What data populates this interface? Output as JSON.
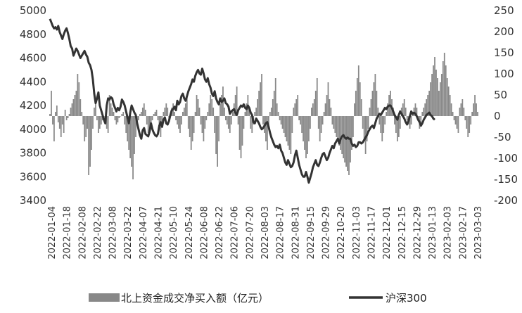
{
  "chart_data": {
    "type": "bar",
    "colors": {
      "bars": "#888888",
      "line": "#333333"
    },
    "left_axis": {
      "ticks": [
        3400,
        3600,
        3800,
        4000,
        4200,
        4400,
        4600,
        4800,
        5000
      ],
      "range": [
        3400,
        5000
      ]
    },
    "right_axis": {
      "ticks": [
        -200,
        -150,
        -100,
        -50,
        0,
        50,
        100,
        150,
        200,
        250
      ],
      "range": [
        -200,
        250
      ]
    },
    "x_ticks": [
      "2022-01-04",
      "2022-01-18",
      "2022-02-08",
      "2022-02-22",
      "2022-03-08",
      "2022-03-22",
      "2022-04-07",
      "2022-04-21",
      "2022-05-10",
      "2022-05-24",
      "2022-06-08",
      "2022-06-22",
      "2022-07-06",
      "2022-07-20",
      "2022-08-03",
      "2022-08-17",
      "2022-08-31",
      "2022-09-15",
      "2022-09-29",
      "2022-10-20",
      "2022-11-03",
      "2022-11-17",
      "2022-12-01",
      "2022-12-15",
      "2022-12-29",
      "2023-01-13",
      "2023-02-03",
      "2023-02-17",
      "2023-03-03"
    ],
    "series": [
      {
        "name": "北上资金成交净买入额（亿元）",
        "kind": "bar",
        "axis": "right",
        "values": [
          5,
          60,
          -20,
          -60,
          10,
          25,
          -15,
          -30,
          -50,
          -20,
          -40,
          15,
          -10,
          -5,
          5,
          20,
          30,
          40,
          50,
          60,
          100,
          80,
          40,
          10,
          -20,
          -60,
          -50,
          -30,
          -140,
          -120,
          -80,
          -30,
          20,
          40,
          -10,
          -40,
          -30,
          -20,
          -10,
          -5,
          -20,
          -30,
          -40,
          50,
          30,
          20,
          10,
          -10,
          -20,
          -15,
          -5,
          0,
          5,
          10,
          -20,
          -40,
          -60,
          -80,
          -100,
          -120,
          -150,
          -90,
          -50,
          -20,
          -10,
          5,
          10,
          20,
          30,
          15,
          -20,
          -40,
          -30,
          -20,
          -10,
          5,
          10,
          15,
          -10,
          -30,
          -50,
          -20,
          10,
          20,
          30,
          20,
          -10,
          5,
          20,
          30,
          10,
          -10,
          -20,
          -30,
          -40,
          -20,
          10,
          20,
          30,
          50,
          -30,
          -50,
          -80,
          -60,
          -40,
          10,
          50,
          40,
          20,
          -20,
          -40,
          -60,
          -30,
          -10,
          10,
          30,
          50,
          40,
          20,
          -40,
          -90,
          -120,
          -60,
          30,
          50,
          70,
          20,
          -10,
          -20,
          -30,
          -40,
          -20,
          10,
          30,
          50,
          70,
          -20,
          -80,
          -100,
          -70,
          -30,
          10,
          30,
          50,
          20,
          -30,
          -40,
          -20,
          10,
          20,
          40,
          60,
          80,
          100,
          -20,
          -40,
          -60,
          -80,
          -30,
          10,
          20,
          40,
          60,
          90,
          30,
          10,
          -10,
          -20,
          -30,
          -40,
          -50,
          -60,
          -70,
          -80,
          -90,
          -40,
          20,
          30,
          40,
          50,
          -10,
          -20,
          -40,
          -60,
          -80,
          -100,
          -90,
          -60,
          -30,
          20,
          30,
          40,
          60,
          90,
          -30,
          -60,
          -40,
          -20,
          10,
          30,
          50,
          80,
          40,
          20,
          -20,
          -30,
          -40,
          -50,
          -60,
          -70,
          -80,
          -90,
          -100,
          -110,
          -120,
          -130,
          -140,
          -110,
          -80,
          -50,
          30,
          60,
          90,
          120,
          80,
          40,
          -30,
          -60,
          -90,
          -60,
          -30,
          20,
          40,
          60,
          80,
          100,
          60,
          20,
          -20,
          -40,
          -60,
          -40,
          -20,
          10,
          30,
          50,
          60,
          40,
          20,
          -20,
          -40,
          -60,
          -50,
          -30,
          20,
          30,
          40,
          20,
          -10,
          -20,
          -30,
          -20,
          10,
          20,
          30,
          20,
          -10,
          -30,
          -20,
          10,
          20,
          30,
          40,
          50,
          60,
          80,
          100,
          120,
          140,
          110,
          90,
          60,
          80,
          100,
          130,
          150,
          120,
          90,
          70,
          50,
          30,
          10,
          -10,
          -20,
          -30,
          -40,
          20,
          30,
          40,
          20,
          -10,
          -30,
          -50,
          -40,
          -20,
          10,
          30,
          50,
          30,
          10
        ]
      },
      {
        "name": "沪深300",
        "kind": "line",
        "axis": "left",
        "values": [
          4930,
          4900,
          4870,
          4850,
          4860,
          4840,
          4870,
          4820,
          4790,
          4760,
          4800,
          4830,
          4850,
          4810,
          4760,
          4700,
          4680,
          4620,
          4650,
          4680,
          4660,
          4630,
          4600,
          4620,
          4640,
          4660,
          4630,
          4610,
          4560,
          4540,
          4500,
          4420,
          4300,
          4220,
          4260,
          4310,
          4200,
          4160,
          4120,
          4080,
          4050,
          4200,
          4260,
          4250,
          4270,
          4260,
          4210,
          4180,
          4150,
          4180,
          4160,
          4190,
          4250,
          4230,
          4200,
          4150,
          4100,
          4050,
          4140,
          4200,
          4170,
          4140,
          4120,
          4050,
          4000,
          3950,
          3920,
          3990,
          4010,
          3960,
          3950,
          3940,
          3980,
          4050,
          4000,
          3970,
          3950,
          3940,
          3960,
          4030,
          4060,
          4020,
          4080,
          4100,
          4050,
          4040,
          4070,
          4120,
          4160,
          4170,
          4190,
          4160,
          4240,
          4210,
          4230,
          4280,
          4300,
          4260,
          4240,
          4280,
          4320,
          4350,
          4380,
          4420,
          4400,
          4450,
          4480,
          4500,
          4470,
          4460,
          4510,
          4470,
          4420,
          4400,
          4430,
          4380,
          4350,
          4300,
          4280,
          4320,
          4260,
          4230,
          4210,
          4260,
          4230,
          4240,
          4260,
          4220,
          4210,
          4190,
          4130,
          4150,
          4160,
          4170,
          4140,
          4120,
          4160,
          4180,
          4200,
          4190,
          4210,
          4180,
          4170,
          4200,
          4180,
          4140,
          4120,
          4060,
          4050,
          4090,
          4070,
          4050,
          4020,
          4000,
          4010,
          4030,
          4050,
          4060,
          4020,
          3970,
          3930,
          3900,
          3870,
          3850,
          3860,
          3840,
          3870,
          3820,
          3800,
          3760,
          3720,
          3700,
          3740,
          3710,
          3680,
          3690,
          3720,
          3780,
          3820,
          3760,
          3700,
          3660,
          3620,
          3600,
          3600,
          3640,
          3600,
          3550,
          3590,
          3630,
          3680,
          3710,
          3740,
          3700,
          3690,
          3720,
          3760,
          3790,
          3800,
          3770,
          3740,
          3760,
          3800,
          3830,
          3860,
          3840,
          3880,
          3900,
          3920,
          3880,
          3920,
          3940,
          3950,
          3930,
          3920,
          3930,
          3920,
          3920,
          3880,
          3860,
          3870,
          3850,
          3860,
          3890,
          3890,
          3880,
          3890,
          3910,
          3930,
          3950,
          3980,
          4000,
          4020,
          4030,
          4010,
          4050,
          4090,
          4110,
          4130,
          4120,
          4140,
          4160,
          4180,
          4170,
          4190,
          4200,
          4200,
          4180,
          4150,
          4120,
          4100,
          4080,
          4120,
          4150,
          4130,
          4110,
          4090,
          4060,
          4040,
          4070,
          4110,
          4150,
          4130,
          4140,
          4130,
          4110,
          4080,
          4060,
          4030,
          4050,
          4080,
          4100,
          4120,
          4130,
          4140,
          4120,
          4110,
          4090,
          4080
        ]
      }
    ]
  }
}
